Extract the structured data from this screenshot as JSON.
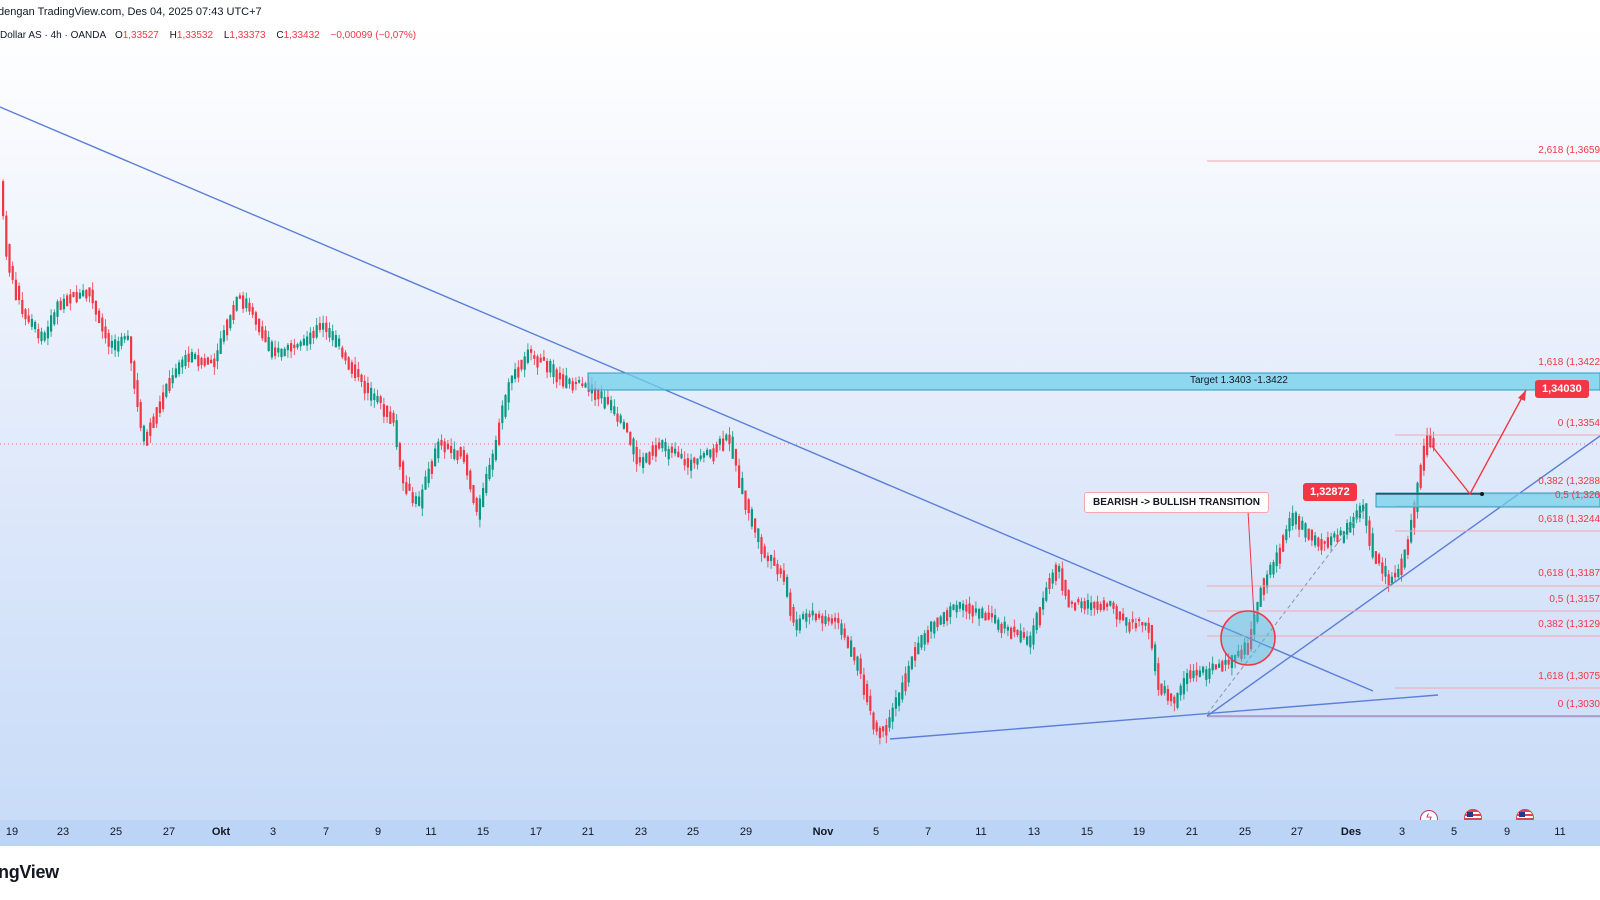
{
  "topbar": {
    "text": "dengan TradingView.com, Des 04, 2025 07:43 UTC+7"
  },
  "legend": {
    "symbol": "Dollar AS · 4h · OANDA",
    "o_label": "O",
    "o_value": "1,33527",
    "h_label": "H",
    "h_value": "1,33532",
    "l_label": "L",
    "l_value": "1,33373",
    "c_label": "C",
    "c_value": "1,33432",
    "change": "−0,00099 (−0,07%)"
  },
  "xaxis": {
    "ticks": [
      {
        "label": "19",
        "month": false
      },
      {
        "label": "23",
        "month": false
      },
      {
        "label": "25",
        "month": false
      },
      {
        "label": "27",
        "month": false
      },
      {
        "label": "Okt",
        "month": true
      },
      {
        "label": "3",
        "month": false
      },
      {
        "label": "7",
        "month": false
      },
      {
        "label": "9",
        "month": false
      },
      {
        "label": "11",
        "month": false
      },
      {
        "label": "15",
        "month": false
      },
      {
        "label": "17",
        "month": false
      },
      {
        "label": "21",
        "month": false
      },
      {
        "label": "23",
        "month": false
      },
      {
        "label": "25",
        "month": false
      },
      {
        "label": "29",
        "month": false
      },
      {
        "label": "Nov",
        "month": true
      },
      {
        "label": "5",
        "month": false
      },
      {
        "label": "7",
        "month": false
      },
      {
        "label": "11",
        "month": false
      },
      {
        "label": "13",
        "month": false
      },
      {
        "label": "15",
        "month": false
      },
      {
        "label": "19",
        "month": false
      },
      {
        "label": "21",
        "month": false
      },
      {
        "label": "25",
        "month": false
      },
      {
        "label": "27",
        "month": false
      },
      {
        "label": "Des",
        "month": true
      },
      {
        "label": "3",
        "month": false
      },
      {
        "label": "5",
        "month": false
      },
      {
        "label": "9",
        "month": false
      },
      {
        "label": "11",
        "month": false
      }
    ]
  },
  "fib": {
    "upper": [
      {
        "label": "2,618 (1,3659"
      },
      {
        "label": "1,618 (1,3422"
      },
      {
        "label": "0 (1,3354"
      },
      {
        "label": "0,382 (1,3288"
      },
      {
        "label": "0,5 (1,326"
      },
      {
        "label": "0,618 (1,3244"
      }
    ],
    "lower": [
      {
        "label": "0,618 (1,3187"
      },
      {
        "label": "0,5 (1,3157"
      },
      {
        "label": "0,382 (1,3129"
      },
      {
        "label": "1,618 (1,3075"
      },
      {
        "label": "0 (1,3030"
      }
    ]
  },
  "annotations": {
    "target_zone": "Target 1.3403 -1.3422",
    "target_badge": "1,34030",
    "level_badge": "1,32872",
    "transition_callout": "BEARISH -> BULLISH TRANSITION"
  },
  "events": [
    {
      "icon": "lightning-icon"
    },
    {
      "icon": "us-flag-icon"
    },
    {
      "icon": "us-flag-icon"
    }
  ],
  "footer": {
    "brand": "ngView"
  },
  "colors": {
    "up": "#089981",
    "down": "#f23645",
    "trendline": "#5b7fd9",
    "zone_fill": "#6fd0ea",
    "fib_line": "#f3a7ad",
    "badge": "#f23645"
  }
}
